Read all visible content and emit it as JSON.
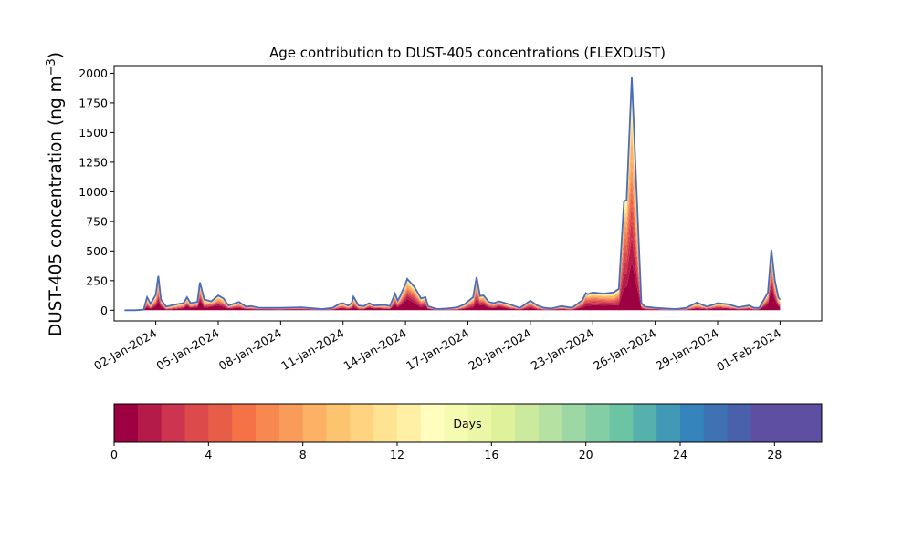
{
  "chart_data": {
    "type": "area",
    "title": "Age contribution to DUST-405 concentrations (FLEXDUST)",
    "xlabel": "",
    "ylabel": "DUST-405 concentration (ng m",
    "ylabel_superscript": "−3",
    "ylabel_close": ")",
    "x_start": "2023-12-31",
    "x_end": "2024-02-03",
    "data_x_range": [
      "2023-12-31T12:00",
      "2024-02-01T00:00"
    ],
    "ylim": [
      -90,
      2065
    ],
    "yticks": [
      "0",
      "250",
      "500",
      "750",
      "1000",
      "1250",
      "1500",
      "1750",
      "2000"
    ],
    "ytick_values": [
      0,
      250,
      500,
      750,
      1000,
      1250,
      1500,
      1750,
      2000
    ],
    "xticks": [
      "02-Jan-2024",
      "05-Jan-2024",
      "08-Jan-2024",
      "11-Jan-2024",
      "14-Jan-2024",
      "17-Jan-2024",
      "20-Jan-2024",
      "23-Jan-2024",
      "26-Jan-2024",
      "29-Jan-2024",
      "01-Feb-2024"
    ],
    "xtick_dates": [
      "2024-01-02",
      "2024-01-05",
      "2024-01-08",
      "2024-01-11",
      "2024-01-14",
      "2024-01-17",
      "2024-01-20",
      "2024-01-23",
      "2024-01-26",
      "2024-01-29",
      "2024-02-01"
    ],
    "grid": false,
    "total_series": [
      [
        "2023-12-31T12:00",
        0
      ],
      [
        "2024-01-01T00:00",
        0
      ],
      [
        "2024-01-01T10:00",
        5
      ],
      [
        "2024-01-01T14:00",
        110
      ],
      [
        "2024-01-01T18:00",
        55
      ],
      [
        "2024-01-02T00:00",
        130
      ],
      [
        "2024-01-02T03:00",
        290
      ],
      [
        "2024-01-02T06:00",
        90
      ],
      [
        "2024-01-02T12:00",
        30
      ],
      [
        "2024-01-03T00:00",
        50
      ],
      [
        "2024-01-03T08:00",
        60
      ],
      [
        "2024-01-03T12:00",
        110
      ],
      [
        "2024-01-03T16:00",
        60
      ],
      [
        "2024-01-04T00:00",
        70
      ],
      [
        "2024-01-04T03:00",
        235
      ],
      [
        "2024-01-04T08:00",
        90
      ],
      [
        "2024-01-04T16:00",
        75
      ],
      [
        "2024-01-05T00:00",
        125
      ],
      [
        "2024-01-05T06:00",
        100
      ],
      [
        "2024-01-05T12:00",
        40
      ],
      [
        "2024-01-06T00:00",
        70
      ],
      [
        "2024-01-06T08:00",
        30
      ],
      [
        "2024-01-06T14:00",
        35
      ],
      [
        "2024-01-07T00:00",
        20
      ],
      [
        "2024-01-08T00:00",
        20
      ],
      [
        "2024-01-09T00:00",
        25
      ],
      [
        "2024-01-10T00:00",
        10
      ],
      [
        "2024-01-10T12:00",
        20
      ],
      [
        "2024-01-10T20:00",
        55
      ],
      [
        "2024-01-11T00:00",
        60
      ],
      [
        "2024-01-11T06:00",
        40
      ],
      [
        "2024-01-11T10:00",
        60
      ],
      [
        "2024-01-11T12:00",
        115
      ],
      [
        "2024-01-11T18:00",
        40
      ],
      [
        "2024-01-12T00:00",
        35
      ],
      [
        "2024-01-12T06:00",
        60
      ],
      [
        "2024-01-12T12:00",
        40
      ],
      [
        "2024-01-13T00:00",
        45
      ],
      [
        "2024-01-13T06:00",
        35
      ],
      [
        "2024-01-13T12:00",
        140
      ],
      [
        "2024-01-13T15:00",
        80
      ],
      [
        "2024-01-13T18:00",
        120
      ],
      [
        "2024-01-14T00:00",
        220
      ],
      [
        "2024-01-14T02:00",
        265
      ],
      [
        "2024-01-14T10:00",
        200
      ],
      [
        "2024-01-14T18:00",
        100
      ],
      [
        "2024-01-14T23:00",
        110
      ],
      [
        "2024-01-15T02:00",
        35
      ],
      [
        "2024-01-15T12:00",
        10
      ],
      [
        "2024-01-16T00:00",
        15
      ],
      [
        "2024-01-16T12:00",
        25
      ],
      [
        "2024-01-16T20:00",
        50
      ],
      [
        "2024-01-17T06:00",
        110
      ],
      [
        "2024-01-17T10:00",
        280
      ],
      [
        "2024-01-17T14:00",
        120
      ],
      [
        "2024-01-17T18:00",
        125
      ],
      [
        "2024-01-18T00:00",
        70
      ],
      [
        "2024-01-18T06:00",
        60
      ],
      [
        "2024-01-18T12:00",
        75
      ],
      [
        "2024-01-19T00:00",
        50
      ],
      [
        "2024-01-19T12:00",
        20
      ],
      [
        "2024-01-20T00:00",
        80
      ],
      [
        "2024-01-20T08:00",
        40
      ],
      [
        "2024-01-20T16:00",
        20
      ],
      [
        "2024-01-21T00:00",
        15
      ],
      [
        "2024-01-21T12:00",
        35
      ],
      [
        "2024-01-22T00:00",
        20
      ],
      [
        "2024-01-22T12:00",
        85
      ],
      [
        "2024-01-22T16:00",
        145
      ],
      [
        "2024-01-22T18:00",
        135
      ],
      [
        "2024-01-23T00:00",
        150
      ],
      [
        "2024-01-23T12:00",
        140
      ],
      [
        "2024-01-24T00:00",
        150
      ],
      [
        "2024-01-24T06:00",
        180
      ],
      [
        "2024-01-24T12:00",
        920
      ],
      [
        "2024-01-24T15:00",
        930
      ],
      [
        "2024-01-24T21:00",
        1970
      ],
      [
        "2024-01-25T03:00",
        920
      ],
      [
        "2024-01-25T08:00",
        60
      ],
      [
        "2024-01-25T12:00",
        30
      ],
      [
        "2024-01-26T00:00",
        20
      ],
      [
        "2024-01-26T12:00",
        15
      ],
      [
        "2024-01-27T00:00",
        10
      ],
      [
        "2024-01-27T12:00",
        20
      ],
      [
        "2024-01-28T00:00",
        65
      ],
      [
        "2024-01-28T12:00",
        30
      ],
      [
        "2024-01-29T00:00",
        60
      ],
      [
        "2024-01-29T12:00",
        50
      ],
      [
        "2024-01-30T00:00",
        25
      ],
      [
        "2024-01-30T12:00",
        40
      ],
      [
        "2024-01-30T18:00",
        20
      ],
      [
        "2024-01-31T00:00",
        20
      ],
      [
        "2024-01-31T10:00",
        150
      ],
      [
        "2024-01-31T14:00",
        510
      ],
      [
        "2024-01-31T18:00",
        250
      ],
      [
        "2024-01-31T22:00",
        110
      ],
      [
        "2024-02-01T00:00",
        90
      ]
    ],
    "colorbar": {
      "label": "Days",
      "ticks": [
        "0",
        "4",
        "8",
        "12",
        "16",
        "20",
        "24",
        "28"
      ],
      "tick_values": [
        0,
        4,
        8,
        12,
        16,
        20,
        24,
        28
      ],
      "range": [
        0,
        30
      ],
      "colors": [
        "#9e0142",
        "#b51b49",
        "#cc3450",
        "#dc4a4c",
        "#e75e48",
        "#f47245",
        "#f7884f",
        "#fa9c59",
        "#fdb164",
        "#fdc470",
        "#fed481",
        "#fee393",
        "#fff0a6",
        "#fffebe",
        "#f6fbb2",
        "#ebf7a6",
        "#dff299",
        "#cbea9e",
        "#b5e2a2",
        "#9dd7a4",
        "#84cea5",
        "#6dc4a5",
        "#56b0ac",
        "#4199b5",
        "#3584bc",
        "#3f72b2",
        "#4961aa",
        "#5e4fa2",
        "#5e4fa2",
        "#5e4fa2"
      ],
      "n_bins": 30
    }
  }
}
